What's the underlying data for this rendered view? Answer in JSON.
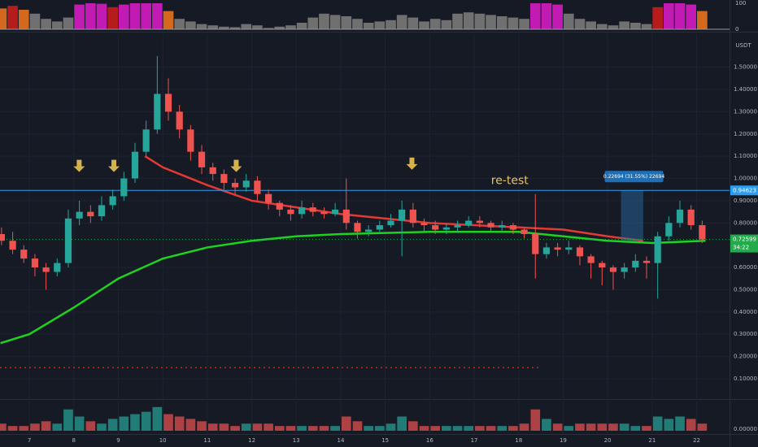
{
  "chart_data": {
    "type": "candlestick",
    "x": [
      6.375,
      6.625,
      6.875,
      7.125,
      7.375,
      7.625,
      7.875,
      8.125,
      8.375,
      8.625,
      8.875,
      9.125,
      9.375,
      9.625,
      9.875,
      10.125,
      10.375,
      10.625,
      10.875,
      11.125,
      11.375,
      11.625,
      11.875,
      12.125,
      12.375,
      12.625,
      12.875,
      13.125,
      13.375,
      13.625,
      13.875,
      14.125,
      14.375,
      14.625,
      14.875,
      15.125,
      15.375,
      15.625,
      15.875,
      16.125,
      16.375,
      16.625,
      16.875,
      17.125,
      17.375,
      17.625,
      17.875,
      18.125,
      18.375,
      18.625,
      18.875,
      19.125,
      19.375,
      19.625,
      19.875,
      20.125,
      20.375,
      20.625,
      20.875,
      21.125,
      21.375,
      21.625,
      21.875,
      22.125
    ],
    "open": [
      0.75,
      0.72,
      0.68,
      0.64,
      0.6,
      0.58,
      0.62,
      0.82,
      0.85,
      0.83,
      0.88,
      0.92,
      1.0,
      1.12,
      1.22,
      1.38,
      1.3,
      1.22,
      1.12,
      1.05,
      1.02,
      0.98,
      0.96,
      0.99,
      0.93,
      0.89,
      0.86,
      0.84,
      0.87,
      0.85,
      0.84,
      0.86,
      0.8,
      0.76,
      0.77,
      0.79,
      0.81,
      0.86,
      0.8,
      0.79,
      0.77,
      0.78,
      0.79,
      0.81,
      0.8,
      0.78,
      0.79,
      0.77,
      0.75,
      0.66,
      0.69,
      0.68,
      0.69,
      0.65,
      0.62,
      0.6,
      0.58,
      0.6,
      0.63,
      0.62,
      0.74,
      0.8,
      0.86,
      0.79
    ],
    "high": [
      0.78,
      0.76,
      0.7,
      0.66,
      0.62,
      0.64,
      0.86,
      0.9,
      0.88,
      0.92,
      0.95,
      1.03,
      1.16,
      1.26,
      1.55,
      1.45,
      1.33,
      1.24,
      1.15,
      1.07,
      1.04,
      1.0,
      1.02,
      1.01,
      0.95,
      0.9,
      0.88,
      0.9,
      0.89,
      0.87,
      0.89,
      1.0,
      0.81,
      0.79,
      0.81,
      0.84,
      0.9,
      0.89,
      0.82,
      0.81,
      0.8,
      0.81,
      0.83,
      0.83,
      0.81,
      0.81,
      0.8,
      0.78,
      0.93,
      0.71,
      0.71,
      0.72,
      0.7,
      0.66,
      0.63,
      0.61,
      0.62,
      0.66,
      0.65,
      0.76,
      0.83,
      0.9,
      0.88,
      0.81
    ],
    "low": [
      0.7,
      0.66,
      0.62,
      0.56,
      0.5,
      0.56,
      0.6,
      0.79,
      0.8,
      0.81,
      0.86,
      0.9,
      0.98,
      1.1,
      1.2,
      1.26,
      1.18,
      1.08,
      1.02,
      0.99,
      0.95,
      0.93,
      0.94,
      0.9,
      0.86,
      0.83,
      0.81,
      0.82,
      0.83,
      0.82,
      0.83,
      0.77,
      0.73,
      0.74,
      0.76,
      0.78,
      0.65,
      0.78,
      0.76,
      0.75,
      0.75,
      0.76,
      0.78,
      0.78,
      0.76,
      0.76,
      0.75,
      0.73,
      0.55,
      0.64,
      0.65,
      0.66,
      0.61,
      0.55,
      0.52,
      0.5,
      0.55,
      0.58,
      0.55,
      0.46,
      0.72,
      0.78,
      0.77,
      0.71
    ],
    "close": [
      0.72,
      0.68,
      0.64,
      0.6,
      0.58,
      0.62,
      0.82,
      0.85,
      0.83,
      0.88,
      0.92,
      1.0,
      1.12,
      1.22,
      1.38,
      1.3,
      1.22,
      1.12,
      1.05,
      1.02,
      0.98,
      0.96,
      0.99,
      0.93,
      0.89,
      0.86,
      0.84,
      0.87,
      0.85,
      0.84,
      0.86,
      0.8,
      0.76,
      0.77,
      0.79,
      0.81,
      0.86,
      0.8,
      0.79,
      0.77,
      0.78,
      0.79,
      0.81,
      0.8,
      0.78,
      0.79,
      0.77,
      0.75,
      0.66,
      0.69,
      0.68,
      0.69,
      0.65,
      0.62,
      0.6,
      0.58,
      0.6,
      0.63,
      0.62,
      0.74,
      0.8,
      0.86,
      0.79,
      0.72599
    ],
    "up_color": "#26a69a",
    "down_color": "#ef5350",
    "xlim": [
      6.34,
      22.74
    ],
    "xticks": [
      7,
      8,
      9,
      10,
      11,
      12,
      13,
      14,
      15,
      16,
      17,
      18,
      19,
      20,
      21,
      22
    ],
    "ylim": [
      0.0123,
      1.6485
    ],
    "yticks": [
      {
        "value": 0.1,
        "label": "0.10000"
      },
      {
        "value": 0.2,
        "label": "0.20000"
      },
      {
        "value": 0.3,
        "label": "0.30000"
      },
      {
        "value": 0.4,
        "label": "0.40000"
      },
      {
        "value": 0.5,
        "label": "0.50000"
      },
      {
        "value": 0.6,
        "label": "0.60000"
      },
      {
        "value": 0.8,
        "label": "0.80000"
      },
      {
        "value": 0.9,
        "label": "0.90000"
      },
      {
        "value": 1.0,
        "label": "1.00000"
      },
      {
        "value": 1.1,
        "label": "1.10000"
      },
      {
        "value": 1.2,
        "label": "1.20000"
      },
      {
        "value": 1.3,
        "label": "1.30000"
      },
      {
        "value": 1.4,
        "label": "1.40000"
      },
      {
        "value": 1.5,
        "label": "1.50000"
      }
    ],
    "y_unit": "USDT",
    "grid": true,
    "level": {
      "value": 0.94623,
      "color": "#2a9df4"
    },
    "last_price": 0.72599,
    "last_price_color": "#22ab4a",
    "countdown": "34:22",
    "dotted_level": {
      "value": 0.15,
      "color": "#e53935",
      "x_end": 18.5
    },
    "overlays": [
      {
        "color": "#1fd21f",
        "x": [
          6.35,
          7,
          8,
          9,
          10,
          11,
          12,
          13,
          14,
          15,
          16,
          17,
          18,
          19,
          20,
          21,
          22.2
        ],
        "values": [
          0.26,
          0.3,
          0.42,
          0.55,
          0.64,
          0.69,
          0.72,
          0.74,
          0.75,
          0.755,
          0.76,
          0.76,
          0.76,
          0.74,
          0.72,
          0.71,
          0.72
        ]
      },
      {
        "color": "#e53935",
        "x": [
          9.6,
          10,
          11,
          12,
          13,
          14,
          15,
          16,
          17,
          18,
          19,
          20,
          20.8
        ],
        "values": [
          1.1,
          1.05,
          0.97,
          0.9,
          0.87,
          0.84,
          0.82,
          0.8,
          0.79,
          0.78,
          0.77,
          0.74,
          0.72
        ]
      }
    ],
    "arrows": {
      "color": "#d4b24c",
      "x": [
        8.12,
        8.9,
        11.65,
        15.6
      ],
      "values": [
        1.04,
        1.04,
        1.04,
        1.05
      ]
    },
    "annotation": {
      "text": "re-test",
      "x": 17.8,
      "y": 0.99,
      "color": "#e6c35c"
    },
    "measure": {
      "label": "0.22694 (31.55%) 22694",
      "from": 0.71929,
      "to": 0.94623,
      "x": [
        20.3,
        20.8
      ]
    },
    "oscillator": {
      "values": [
        80,
        90,
        75,
        60,
        40,
        30,
        45,
        95,
        100,
        98,
        85,
        95,
        100,
        100,
        100,
        70,
        40,
        30,
        20,
        15,
        10,
        8,
        20,
        15,
        5,
        10,
        15,
        25,
        45,
        60,
        55,
        50,
        40,
        25,
        30,
        35,
        55,
        45,
        30,
        40,
        35,
        60,
        65,
        60,
        55,
        50,
        45,
        40,
        100,
        100,
        95,
        60,
        40,
        30,
        20,
        15,
        30,
        25,
        20,
        85,
        100,
        100,
        95,
        70
      ],
      "colors": [
        "#d2691e",
        "#b71c1c",
        "#d2691e",
        "#707070",
        "#707070",
        "#707070",
        "#707070",
        "#c21bb4",
        "#c21bb4",
        "#c21bb4",
        "#b71c1c",
        "#c21bb4",
        "#c21bb4",
        "#c21bb4",
        "#c21bb4",
        "#d2691e",
        "#707070",
        "#707070",
        "#707070",
        "#707070",
        "#707070",
        "#707070",
        "#707070",
        "#707070",
        "#707070",
        "#707070",
        "#707070",
        "#707070",
        "#707070",
        "#707070",
        "#707070",
        "#707070",
        "#707070",
        "#707070",
        "#707070",
        "#707070",
        "#707070",
        "#707070",
        "#707070",
        "#707070",
        "#707070",
        "#707070",
        "#707070",
        "#707070",
        "#707070",
        "#707070",
        "#707070",
        "#707070",
        "#c21bb4",
        "#c21bb4",
        "#c21bb4",
        "#707070",
        "#707070",
        "#707070",
        "#707070",
        "#707070",
        "#707070",
        "#707070",
        "#707070",
        "#b71c1c",
        "#c21bb4",
        "#c21bb4",
        "#c21bb4",
        "#d2691e"
      ],
      "ylim": [
        0,
        100
      ],
      "yticks": [
        0,
        100
      ]
    },
    "volume": {
      "values": [
        3,
        2,
        2,
        3,
        4,
        3,
        9,
        6,
        4,
        3,
        5,
        6,
        7,
        8,
        10,
        7,
        6,
        5,
        4,
        3,
        3,
        2,
        3,
        3,
        3,
        2,
        2,
        2,
        2,
        2,
        2,
        6,
        4,
        2,
        2,
        3,
        6,
        4,
        2,
        2,
        2,
        2,
        2,
        2,
        2,
        2,
        2,
        3,
        9,
        5,
        3,
        2,
        3,
        3,
        3,
        3,
        3,
        2,
        2,
        6,
        5,
        6,
        5,
        3
      ],
      "ylim": [
        0,
        12
      ],
      "yticks": [
        {
          "value": 0,
          "label": "0.00000"
        }
      ]
    }
  }
}
